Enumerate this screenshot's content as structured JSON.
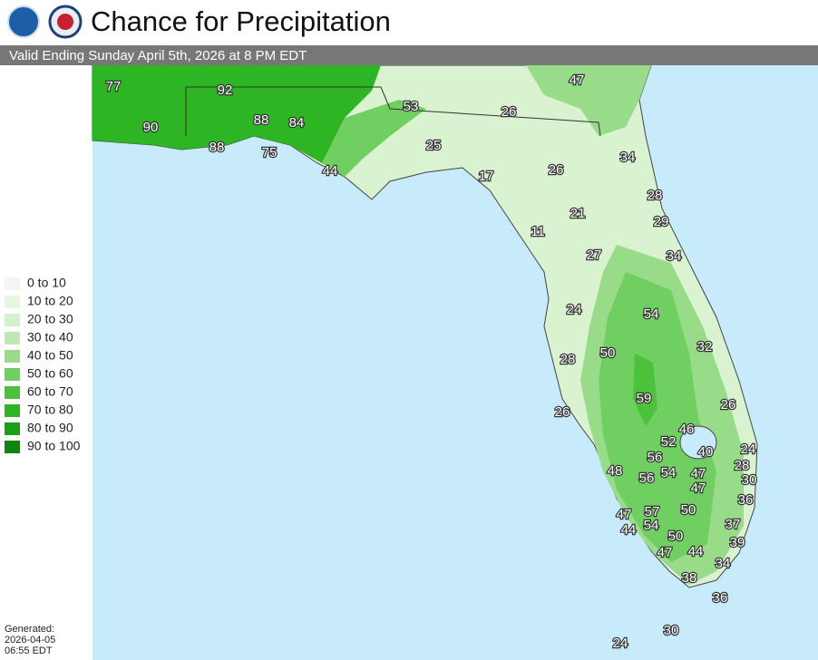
{
  "header": {
    "title": "Chance for Precipitation",
    "subtitle": "Valid Ending Sunday April 5th, 2026 at 8 PM EDT"
  },
  "legend": [
    {
      "label": "0 to 10",
      "color": "#f5f5f5"
    },
    {
      "label": "10 to 20",
      "color": "#e6f7e0"
    },
    {
      "label": "20 to 30",
      "color": "#d5f0cc"
    },
    {
      "label": "30 to 40",
      "color": "#bfe8b3"
    },
    {
      "label": "40 to 50",
      "color": "#98dc8a"
    },
    {
      "label": "50 to 60",
      "color": "#6fcf60"
    },
    {
      "label": "60 to 70",
      "color": "#4ac23c"
    },
    {
      "label": "70 to 80",
      "color": "#2db524"
    },
    {
      "label": "80 to 90",
      "color": "#1ba013"
    },
    {
      "label": "90 to 100",
      "color": "#0c860c"
    }
  ],
  "map_labels": [
    77,
    92,
    90,
    88,
    84,
    53,
    47,
    26,
    88,
    75,
    25,
    44,
    17,
    26,
    34,
    28,
    21,
    29,
    11,
    27,
    34,
    24,
    54,
    32,
    50,
    28,
    59,
    26,
    26,
    46,
    52,
    24,
    40,
    28,
    56,
    30,
    48,
    56,
    54,
    47,
    47,
    36,
    57,
    50,
    47,
    54,
    44,
    37,
    50,
    39,
    47,
    44,
    34,
    38,
    36,
    30,
    24
  ],
  "footer": [
    "Generated:",
    "2026-04-05",
    "06:55 EDT"
  ]
}
